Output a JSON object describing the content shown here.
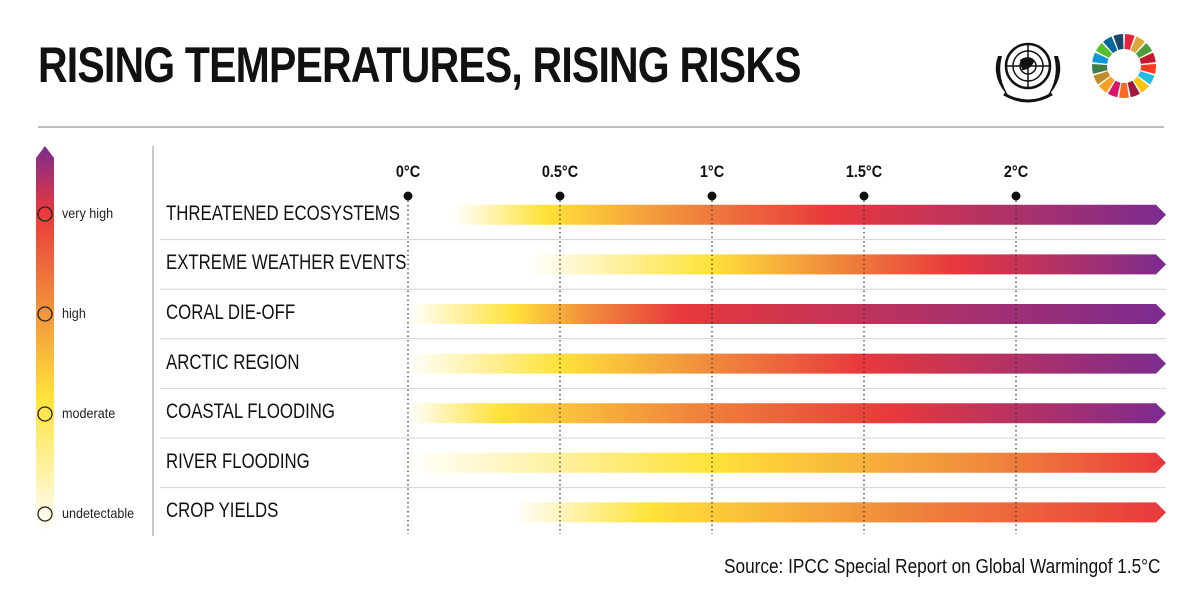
{
  "header": {
    "title": "RISING TEMPERATURES, RISING RISKS",
    "logos": [
      "un-emblem-icon",
      "sdg-wheel-icon"
    ]
  },
  "legend": {
    "levels": [
      "very high",
      "high",
      "moderate",
      "undetectable"
    ],
    "colors": {
      "undetectable": "#ffffff",
      "moderate": "#ffe23a",
      "high": "#f08a3c",
      "very_high": "#e8383c",
      "top": "#7b2b90"
    }
  },
  "chart_data": {
    "type": "bar",
    "x_ticks": [
      "0°C",
      "0.5°C",
      "1°C",
      "1.5°C",
      "2°C"
    ],
    "xlim": [
      0,
      2.5
    ],
    "categories": [
      "THREATENED ECOSYSTEMS",
      "EXTREME WEATHER EVENTS",
      "CORAL DIE-OFF",
      "ARCTIC REGION",
      "COASTAL FLOODING",
      "RIVER FLOODING",
      "CROP YIELDS"
    ],
    "risk_transitions": [
      {
        "category": "THREATENED ECOSYSTEMS",
        "stops": [
          [
            0.15,
            "undetectable"
          ],
          [
            0.45,
            "moderate"
          ],
          [
            0.9,
            "high"
          ],
          [
            1.4,
            "very high"
          ],
          [
            2.5,
            "top"
          ]
        ]
      },
      {
        "category": "EXTREME WEATHER EVENTS",
        "stops": [
          [
            0.4,
            "undetectable"
          ],
          [
            1.0,
            "moderate"
          ],
          [
            1.4,
            "high"
          ],
          [
            1.8,
            "very high"
          ],
          [
            2.5,
            "top"
          ]
        ]
      },
      {
        "category": "CORAL DIE-OFF",
        "stops": [
          [
            0.0,
            "undetectable"
          ],
          [
            0.35,
            "moderate"
          ],
          [
            0.6,
            "high"
          ],
          [
            0.9,
            "very high"
          ],
          [
            2.5,
            "top"
          ]
        ]
      },
      {
        "category": "ARCTIC REGION",
        "stops": [
          [
            0.0,
            "undetectable"
          ],
          [
            0.5,
            "moderate"
          ],
          [
            1.0,
            "high"
          ],
          [
            1.5,
            "very high"
          ],
          [
            2.5,
            "top"
          ]
        ]
      },
      {
        "category": "COASTAL FLOODING",
        "stops": [
          [
            0.0,
            "undetectable"
          ],
          [
            0.3,
            "moderate"
          ],
          [
            0.9,
            "high"
          ],
          [
            1.6,
            "very high"
          ],
          [
            2.5,
            "top"
          ]
        ]
      },
      {
        "category": "RIVER FLOODING",
        "stops": [
          [
            0.0,
            "undetectable"
          ],
          [
            1.0,
            "moderate"
          ],
          [
            1.9,
            "high"
          ],
          [
            2.5,
            "very high"
          ]
        ]
      },
      {
        "category": "CROP YIELDS",
        "stops": [
          [
            0.35,
            "undetectable"
          ],
          [
            0.8,
            "moderate"
          ],
          [
            1.6,
            "high"
          ],
          [
            2.5,
            "very high"
          ]
        ]
      }
    ]
  },
  "footer": {
    "source": "Source: IPCC Special Report on Global Warmingof 1.5°C"
  }
}
